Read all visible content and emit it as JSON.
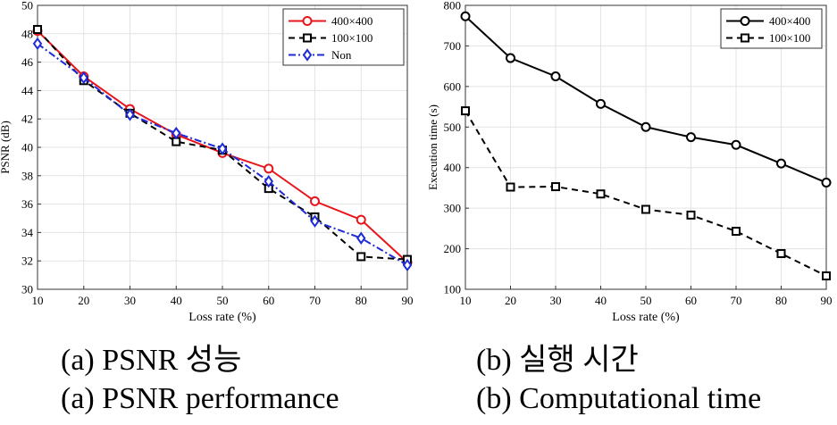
{
  "chart_data": [
    {
      "type": "line",
      "title": "",
      "xlabel": "Loss rate (%)",
      "ylabel": "PSNR (dB)",
      "x": [
        10,
        20,
        30,
        40,
        50,
        60,
        70,
        80,
        90
      ],
      "xlim": [
        10,
        90
      ],
      "ylim": [
        30,
        50
      ],
      "xticks": [
        10,
        20,
        30,
        40,
        50,
        60,
        70,
        80,
        90
      ],
      "yticks": [
        30,
        32,
        34,
        36,
        38,
        40,
        42,
        44,
        46,
        48,
        50
      ],
      "grid": true,
      "legend_position": "top-right",
      "series": [
        {
          "name": "400×400",
          "color": "#e8151b",
          "marker": "circle",
          "dash": "solid",
          "values": [
            48.2,
            45.0,
            42.7,
            40.9,
            39.6,
            38.5,
            36.2,
            34.9,
            31.9
          ]
        },
        {
          "name": "100×100",
          "color": "#000000",
          "marker": "square",
          "dash": "dashed",
          "values": [
            48.3,
            44.7,
            42.4,
            40.4,
            39.8,
            37.1,
            35.1,
            32.3,
            32.1
          ]
        },
        {
          "name": "Non",
          "color": "#1f2bd8",
          "marker": "diamond",
          "dash": "dashdot",
          "values": [
            47.3,
            44.9,
            42.3,
            41.0,
            39.9,
            37.6,
            34.8,
            33.6,
            31.7
          ]
        }
      ]
    },
    {
      "type": "line",
      "title": "",
      "xlabel": "Loss rate (%)",
      "ylabel": "Execution time (s)",
      "x": [
        10,
        20,
        30,
        40,
        50,
        60,
        70,
        80,
        90
      ],
      "xlim": [
        10,
        90
      ],
      "ylim": [
        100,
        800
      ],
      "xticks": [
        10,
        20,
        30,
        40,
        50,
        60,
        70,
        80,
        90
      ],
      "yticks": [
        100,
        200,
        300,
        400,
        500,
        600,
        700,
        800
      ],
      "grid": true,
      "legend_position": "top-right",
      "series": [
        {
          "name": "400×400",
          "color": "#000000",
          "marker": "circle",
          "dash": "solid",
          "values": [
            773,
            670,
            625,
            557,
            500,
            475,
            456,
            410,
            363
          ]
        },
        {
          "name": "100×100",
          "color": "#000000",
          "marker": "square",
          "dash": "dashed",
          "values": [
            540,
            352,
            353,
            335,
            297,
            283,
            243,
            188,
            133
          ]
        }
      ]
    }
  ],
  "captions": {
    "left_ko": "(a) PSNR 성능",
    "left_en": "(a) PSNR performance",
    "right_ko": "(b) 실행 시간",
    "right_en": "(b) Computational time"
  }
}
